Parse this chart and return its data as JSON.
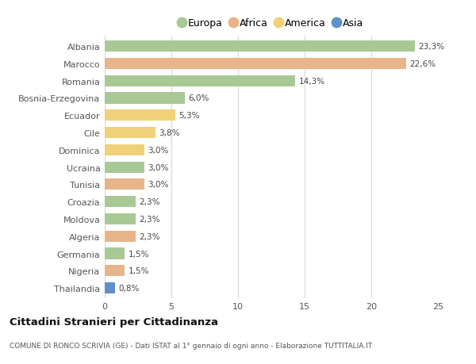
{
  "countries": [
    "Albania",
    "Marocco",
    "Romania",
    "Bosnia-Erzegovina",
    "Ecuador",
    "Cile",
    "Dominica",
    "Ucraina",
    "Tunisia",
    "Croazia",
    "Moldova",
    "Algeria",
    "Germania",
    "Nigeria",
    "Thailandia"
  ],
  "values": [
    23.3,
    22.6,
    14.3,
    6.0,
    5.3,
    3.8,
    3.0,
    3.0,
    3.0,
    2.3,
    2.3,
    2.3,
    1.5,
    1.5,
    0.8
  ],
  "labels": [
    "23,3%",
    "22,6%",
    "14,3%",
    "6,0%",
    "5,3%",
    "3,8%",
    "3,0%",
    "3,0%",
    "3,0%",
    "2,3%",
    "2,3%",
    "2,3%",
    "1,5%",
    "1,5%",
    "0,8%"
  ],
  "continents": [
    "Europa",
    "Africa",
    "Europa",
    "Europa",
    "America",
    "America",
    "America",
    "Europa",
    "Africa",
    "Europa",
    "Europa",
    "Africa",
    "Europa",
    "Africa",
    "Asia"
  ],
  "colors": {
    "Europa": "#a8c896",
    "Africa": "#e8b48a",
    "America": "#f0d078",
    "Asia": "#6090c8"
  },
  "legend_order": [
    "Europa",
    "Africa",
    "America",
    "Asia"
  ],
  "title": "Cittadini Stranieri per Cittadinanza",
  "subtitle": "COMUNE DI RONCO SCRIVIA (GE) - Dati ISTAT al 1° gennaio di ogni anno - Elaborazione TUTTITALIA.IT",
  "xlim": [
    0,
    25
  ],
  "xticks": [
    0,
    5,
    10,
    15,
    20,
    25
  ],
  "background_color": "#ffffff",
  "grid_color": "#d8d8d8"
}
